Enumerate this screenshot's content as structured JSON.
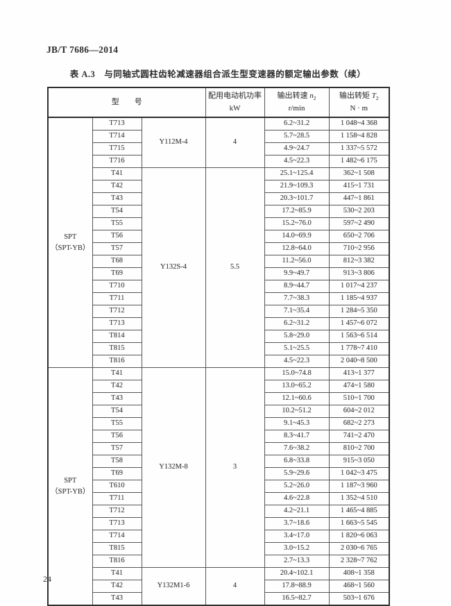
{
  "page": {
    "doc_number": "JB/T 7686—2014",
    "table_title": "表 A.3　与同轴式圆柱齿轮减速器组合派生型变速器的额定输出参数（续）",
    "page_number": "24"
  },
  "table": {
    "header": {
      "model_label": "型　　号",
      "power_label": "配用电动机功率",
      "power_unit": "kW",
      "speed_label": "输出转速 ",
      "speed_symbol": "n",
      "speed_sub": "2",
      "speed_unit": "r/min",
      "torque_label": "输出转矩 ",
      "torque_symbol": "T",
      "torque_sub": "2",
      "torque_unit": "N · m"
    },
    "series_cells": [
      {
        "line1": "SPT",
        "line2": "（SPT-YB）",
        "row_span": 20
      },
      {
        "line1": "SPT",
        "line2": "（SPT-YB）",
        "row_span": 19
      }
    ],
    "motor_groups": [
      {
        "motor": "Y112M-4",
        "power": "4",
        "rows": [
          {
            "model": "T713",
            "speed": "6.2~31.2",
            "torque": "1 048~4 368"
          },
          {
            "model": "T714",
            "speed": "5.7~28.5",
            "torque": "1 158~4 828"
          },
          {
            "model": "T715",
            "speed": "4.9~24.7",
            "torque": "1 337~5 572"
          },
          {
            "model": "T716",
            "speed": "4.5~22.3",
            "torque": "1 482~6 175"
          }
        ]
      },
      {
        "motor": "Y132S-4",
        "power": "5.5",
        "rows": [
          {
            "model": "T41",
            "speed": "25.1~125.4",
            "torque": "362~1 508"
          },
          {
            "model": "T42",
            "speed": "21.9~109.3",
            "torque": "415~1 731"
          },
          {
            "model": "T43",
            "speed": "20.3~101.7",
            "torque": "447~1 861"
          },
          {
            "model": "T54",
            "speed": "17.2~85.9",
            "torque": "530~2 203"
          },
          {
            "model": "T55",
            "speed": "15.2~76.0",
            "torque": "597~2 490"
          },
          {
            "model": "T56",
            "speed": "14.0~69.9",
            "torque": "650~2 706"
          },
          {
            "model": "T57",
            "speed": "12.8~64.0",
            "torque": "710~2 956"
          },
          {
            "model": "T68",
            "speed": "11.2~56.0",
            "torque": "812~3 382"
          },
          {
            "model": "T69",
            "speed": "9.9~49.7",
            "torque": "913~3 806"
          },
          {
            "model": "T710",
            "speed": "8.9~44.7",
            "torque": "1 017~4 237"
          },
          {
            "model": "T711",
            "speed": "7.7~38.3",
            "torque": "1 185~4 937"
          },
          {
            "model": "T712",
            "speed": "7.1~35.4",
            "torque": "1 284~5 350"
          },
          {
            "model": "T713",
            "speed": "6.2~31.2",
            "torque": "1 457~6 072"
          },
          {
            "model": "T814",
            "speed": "5.8~29.0",
            "torque": "1 563~6 514"
          },
          {
            "model": "T815",
            "speed": "5.1~25.5",
            "torque": "1 778~7 410"
          },
          {
            "model": "T816",
            "speed": "4.5~22.3",
            "torque": "2 040~8 500"
          }
        ]
      },
      {
        "motor": "Y132M-8",
        "power": "3",
        "rows": [
          {
            "model": "T41",
            "speed": "15.0~74.8",
            "torque": "413~1 377"
          },
          {
            "model": "T42",
            "speed": "13.0~65.2",
            "torque": "474~1 580"
          },
          {
            "model": "T43",
            "speed": "12.1~60.6",
            "torque": "510~1 700"
          },
          {
            "model": "T54",
            "speed": "10.2~51.2",
            "torque": "604~2 012"
          },
          {
            "model": "T55",
            "speed": "9.1~45.3",
            "torque": "682~2 273"
          },
          {
            "model": "T56",
            "speed": "8.3~41.7",
            "torque": "741~2 470"
          },
          {
            "model": "T57",
            "speed": "7.6~38.2",
            "torque": "810~2 700"
          },
          {
            "model": "T58",
            "speed": "6.8~33.8",
            "torque": "915~3 050"
          },
          {
            "model": "T69",
            "speed": "5.9~29.6",
            "torque": "1 042~3 475"
          },
          {
            "model": "T610",
            "speed": "5.2~26.0",
            "torque": "1 187~3 960"
          },
          {
            "model": "T711",
            "speed": "4.6~22.8",
            "torque": "1 352~4 510"
          },
          {
            "model": "T712",
            "speed": "4.2~21.1",
            "torque": "1 465~4 885"
          },
          {
            "model": "T713",
            "speed": "3.7~18.6",
            "torque": "1 663~5 545"
          },
          {
            "model": "T714",
            "speed": "3.4~17.0",
            "torque": "1 820~6 063"
          },
          {
            "model": "T815",
            "speed": "3.0~15.2",
            "torque": "2 030~6 765"
          },
          {
            "model": "T816",
            "speed": "2.7~13.3",
            "torque": "2 328~7 762"
          }
        ]
      },
      {
        "motor": "Y132M1-6",
        "power": "4",
        "rows": [
          {
            "model": "T41",
            "speed": "20.4~102.1",
            "torque": "408~1 358"
          },
          {
            "model": "T42",
            "speed": "17.8~88.9",
            "torque": "468~1 560"
          },
          {
            "model": "T43",
            "speed": "16.5~82.7",
            "torque": "503~1 676"
          }
        ]
      }
    ]
  }
}
